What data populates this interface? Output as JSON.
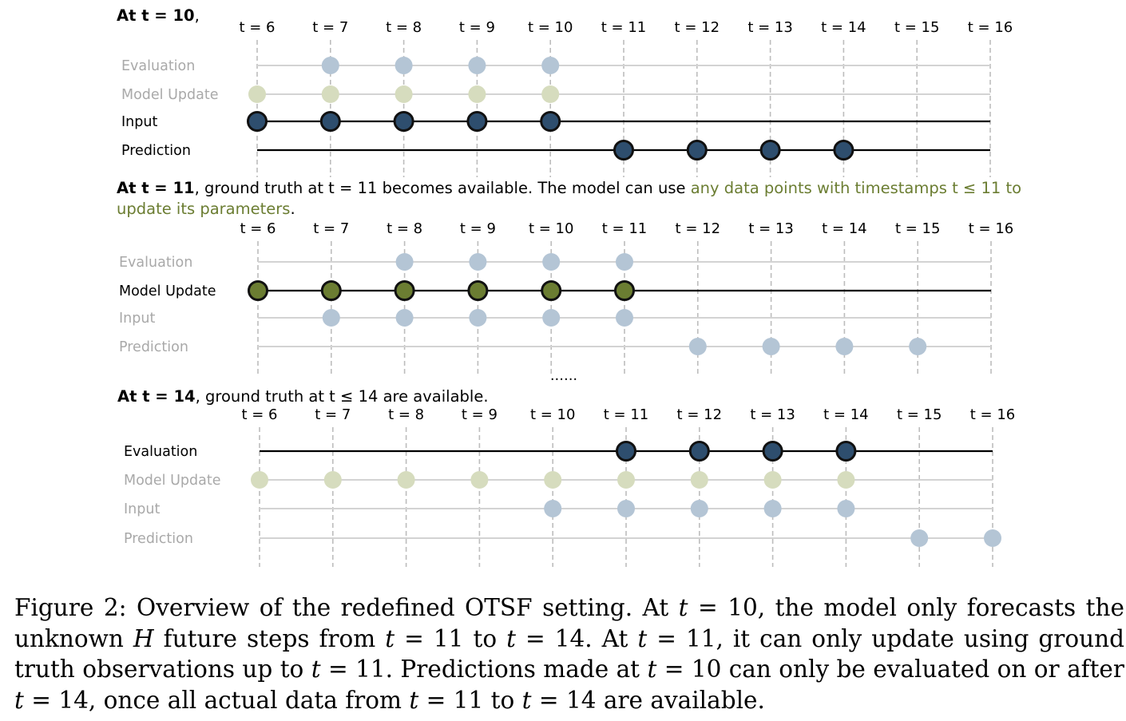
{
  "colors": {
    "blue_active": "#2e4e6e",
    "blue_faded": "#b4c5d5",
    "green_active": "#6b7d32",
    "green_faded": "#d6dcbe",
    "highlight_text": "#6b7d32",
    "faded_text": "#a9a9a9",
    "active_line": "#000000",
    "faded_line": "#d3d3d3",
    "grid": "#bdbdbd"
  },
  "time_labels": [
    "t = 6",
    "t = 7",
    "t = 8",
    "t = 9",
    "t = 10",
    "t = 11",
    "t = 12",
    "t = 13",
    "t = 14",
    "t = 15",
    "t = 16"
  ],
  "row_labels": [
    "Evaluation",
    "Model Update",
    "Input",
    "Prediction"
  ],
  "ellipsis": "......",
  "panels": [
    {
      "heading": [
        {
          "text": "At t = 10",
          "style": "bold"
        },
        {
          "text": ",",
          "style": "normal"
        }
      ],
      "heading_lines": 1,
      "active_row": "Input",
      "rows": [
        {
          "name": "Evaluation",
          "status": "faded",
          "kind": "blue",
          "times": [
            7,
            8,
            9,
            10
          ]
        },
        {
          "name": "Model Update",
          "status": "faded",
          "kind": "green",
          "times": [
            6,
            7,
            8,
            9,
            10
          ]
        },
        {
          "name": "Input",
          "status": "active",
          "kind": "blue",
          "times": [
            6,
            7,
            8,
            9,
            10
          ]
        },
        {
          "name": "Prediction",
          "status": "active",
          "kind": "blue",
          "times": [
            11,
            12,
            13,
            14
          ]
        }
      ]
    },
    {
      "heading": [
        {
          "text": "At t = 11",
          "style": "bold"
        },
        {
          "text": ", ground truth at t = 11 becomes available. The model can use ",
          "style": "normal"
        },
        {
          "text": "any data points with timestamps t ≤ 11 to",
          "style": "highlight"
        },
        {
          "text": "\n",
          "style": "break"
        },
        {
          "text": "update its parameters",
          "style": "highlight"
        },
        {
          "text": ".",
          "style": "normal"
        }
      ],
      "heading_lines": 2,
      "active_row": "Model Update",
      "rows": [
        {
          "name": "Evaluation",
          "status": "faded",
          "kind": "blue",
          "times": [
            8,
            9,
            10,
            11
          ]
        },
        {
          "name": "Model Update",
          "status": "active",
          "kind": "green",
          "times": [
            6,
            7,
            8,
            9,
            10,
            11
          ]
        },
        {
          "name": "Input",
          "status": "faded",
          "kind": "blue",
          "times": [
            7,
            8,
            9,
            10,
            11
          ]
        },
        {
          "name": "Prediction",
          "status": "faded",
          "kind": "blue",
          "times": [
            12,
            13,
            14,
            15
          ]
        }
      ]
    },
    {
      "heading": [
        {
          "text": "At t = 14",
          "style": "bold"
        },
        {
          "text": ", ground truth at t ≤ 14 are available.",
          "style": "normal"
        }
      ],
      "heading_lines": 1,
      "active_row": "Evaluation",
      "rows": [
        {
          "name": "Evaluation",
          "status": "active",
          "kind": "blue",
          "times": [
            11,
            12,
            13,
            14
          ]
        },
        {
          "name": "Model Update",
          "status": "faded",
          "kind": "green",
          "times": [
            6,
            7,
            8,
            9,
            10,
            11,
            12,
            13,
            14
          ]
        },
        {
          "name": "Input",
          "status": "faded",
          "kind": "blue",
          "times": [
            10,
            11,
            12,
            13,
            14
          ]
        },
        {
          "name": "Prediction",
          "status": "faded",
          "kind": "blue",
          "times": [
            15,
            16
          ]
        }
      ]
    }
  ],
  "caption": {
    "label": "Figure 2:",
    "text_1": "Overview of the redefined OTSF setting. At",
    "m_t1": "t",
    "eq1": " = 10, the model only forecasts the unknown",
    "m_H": "H",
    "text_2": " future steps from ",
    "m_t2": "t",
    "eq2": " = 11 to ",
    "m_t3": "t",
    "eq3": " = 14. At ",
    "m_t4": "t",
    "eq4": " = 11, it can only update using ground truth observations up to ",
    "m_t5": "t",
    "eq5": " = 11. Predictions made at ",
    "m_t6": "t",
    "eq6": " = 10 can only be evaluated on or after ",
    "m_t7": "t",
    "eq7": " = 14, once all actual data from ",
    "m_t8": "t",
    "eq8": " = 11 to ",
    "m_t9": "t",
    "eq9": " = 14 are available."
  }
}
